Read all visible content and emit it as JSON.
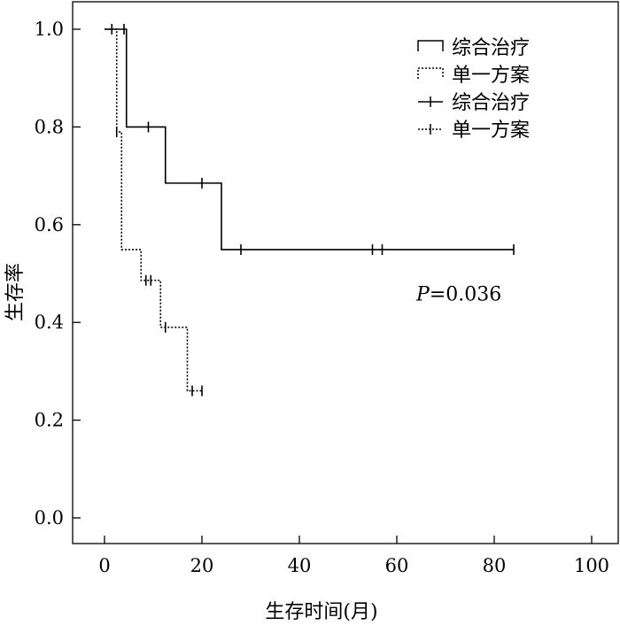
{
  "chart_data": {
    "type": "line",
    "subtype": "kaplan-meier",
    "title": "",
    "xlabel": "生存时间(月)",
    "ylabel": "生存率",
    "xlim": [
      -2,
      105
    ],
    "ylim": [
      -0.05,
      1.05
    ],
    "xticks": [
      0,
      20,
      40,
      60,
      80,
      100
    ],
    "yticks": [
      0.0,
      0.2,
      0.4,
      0.6,
      0.8,
      1.0
    ],
    "xtick_labels": [
      "0",
      "20",
      "40",
      "60",
      "80",
      "100"
    ],
    "ytick_labels": [
      "0.0",
      "0.2",
      "0.4",
      "0.6",
      "0.8",
      "1.0"
    ],
    "grid": false,
    "legend_position": "top-right",
    "annotation": {
      "label": "P",
      "text": "=0.036",
      "x": 64,
      "y": 0.445
    },
    "series": [
      {
        "name": "综合治疗",
        "line_style": "solid",
        "color": "#000000",
        "steps": [
          [
            0,
            1.0
          ],
          [
            4.5,
            0.8
          ],
          [
            12.5,
            0.685
          ],
          [
            24,
            0.549
          ],
          [
            84,
            0.549
          ]
        ],
        "censor_name": "综合治疗",
        "censored": [
          [
            4,
            1.0
          ],
          [
            9,
            0.8
          ],
          [
            20,
            0.685
          ],
          [
            28,
            0.549
          ],
          [
            55,
            0.549
          ],
          [
            57,
            0.549
          ],
          [
            84,
            0.549
          ]
        ]
      },
      {
        "name": "单一方案",
        "line_style": "dotted",
        "color": "#000000",
        "steps": [
          [
            0,
            1.0
          ],
          [
            2.5,
            0.79
          ],
          [
            3.5,
            0.549
          ],
          [
            7.5,
            0.486
          ],
          [
            11.5,
            0.39
          ],
          [
            17,
            0.26
          ],
          [
            20,
            0.26
          ]
        ],
        "censor_name": "单一方案",
        "censored": [
          [
            1.5,
            1.0
          ],
          [
            2.5,
            0.79
          ],
          [
            8.5,
            0.486
          ],
          [
            9.5,
            0.486
          ],
          [
            12.5,
            0.39
          ],
          [
            18,
            0.26
          ],
          [
            20,
            0.26
          ]
        ]
      }
    ],
    "legend": [
      {
        "label": "综合治疗",
        "kind": "line",
        "style": "solid"
      },
      {
        "label": "单一方案",
        "kind": "line",
        "style": "dotted"
      },
      {
        "label": "综合治疗",
        "kind": "censor",
        "style": "solid"
      },
      {
        "label": "单一方案",
        "kind": "censor",
        "style": "dotted"
      }
    ]
  }
}
